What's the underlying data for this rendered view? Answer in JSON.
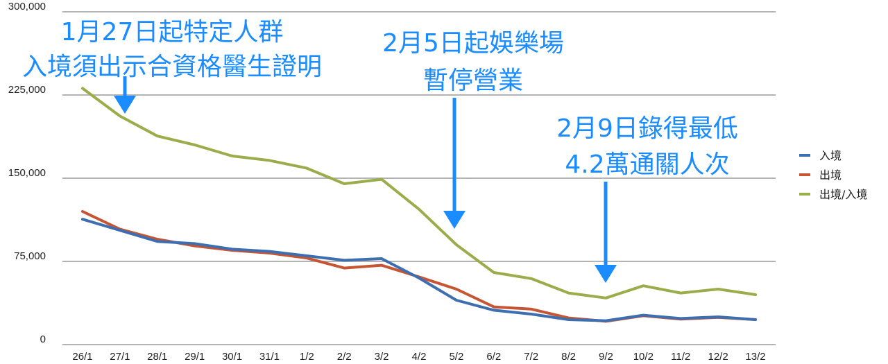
{
  "chart_data": {
    "type": "line",
    "categories": [
      "26/1",
      "27/1",
      "28/1",
      "29/1",
      "30/1",
      "31/1",
      "1/2",
      "2/2",
      "3/2",
      "4/2",
      "5/2",
      "6/2",
      "7/2",
      "8/2",
      "9/2",
      "10/2",
      "11/2",
      "12/2",
      "13/2"
    ],
    "series": [
      {
        "name": "入境",
        "color": "#3d6fb0",
        "values": [
          113000,
          103000,
          93000,
          91000,
          86000,
          84000,
          80000,
          76000,
          77500,
          60000,
          40000,
          31000,
          27500,
          22500,
          21500,
          26500,
          23500,
          25000,
          22500
        ]
      },
      {
        "name": "出境",
        "color": "#c65534",
        "values": [
          120000,
          104000,
          95000,
          89000,
          85000,
          82500,
          78000,
          69000,
          71500,
          61000,
          50000,
          34000,
          32000,
          24000,
          21000,
          26000,
          23000,
          24500,
          22500
        ]
      },
      {
        "name": "出境/入境",
        "color": "#9bac4b",
        "values": [
          231000,
          206000,
          188000,
          180000,
          170000,
          166000,
          159000,
          145000,
          149000,
          122000,
          90000,
          65000,
          59500,
          46500,
          42000,
          53000,
          46500,
          50000,
          45000
        ]
      }
    ],
    "ylim": [
      0,
      300000
    ],
    "yticks": [
      "0",
      "75,000",
      "150,000",
      "225,000",
      "300,000"
    ],
    "grid": true,
    "legend": "right",
    "annotations": [
      {
        "lines": [
          "1月27日起特定人群",
          "入境須出示合資格醫生證明"
        ],
        "arrow_at": "27/1"
      },
      {
        "lines": [
          "2月5日起娛樂場",
          "暫停營業"
        ],
        "arrow_at": "5/2"
      },
      {
        "lines": [
          "2月9日錄得最低",
          "4.2萬通關人次"
        ],
        "arrow_at": "9/2"
      }
    ],
    "annotation_color": "#1a8cff"
  }
}
